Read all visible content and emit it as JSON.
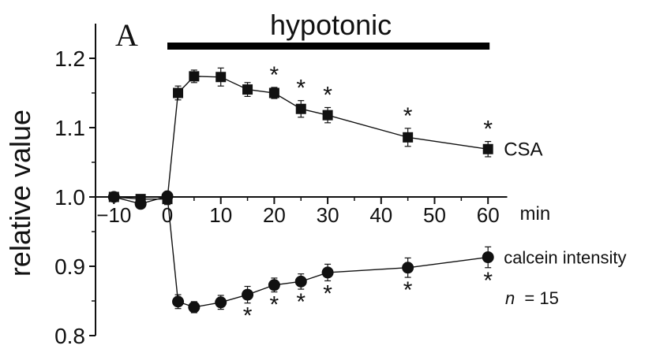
{
  "chart_data": {
    "type": "line",
    "panel_label": "A",
    "condition_label": "hypotonic",
    "ylabel": "relative value",
    "x_unit": "min",
    "ylim": [
      0.8,
      1.25
    ],
    "xlim": [
      -15,
      63
    ],
    "x_ticks": [
      -10,
      0,
      10,
      20,
      30,
      40,
      50,
      60
    ],
    "y_ticks": [
      0.8,
      0.9,
      1.0,
      1.1,
      1.2
    ],
    "x_tick_labels": [
      "−10",
      "0",
      "10",
      "20",
      "30",
      "40",
      "50",
      "60"
    ],
    "y_tick_labels": [
      "0.8",
      "0.9",
      "1.0",
      "1.1",
      "1.2"
    ],
    "hypotonic_period": [
      0,
      60
    ],
    "sample_size_label": "n",
    "sample_size_value": "= 15",
    "significance_marker": "*",
    "series": [
      {
        "name": "CSA",
        "marker": "square",
        "x": [
          -10,
          -5,
          0,
          2,
          5,
          10,
          15,
          20,
          25,
          30,
          45,
          60
        ],
        "y": [
          1.0,
          0.997,
          0.997,
          1.15,
          1.174,
          1.173,
          1.155,
          1.15,
          1.127,
          1.118,
          1.086,
          1.069
        ],
        "err": [
          0.004,
          0.005,
          0.008,
          0.01,
          0.009,
          0.013,
          0.01,
          0.008,
          0.012,
          0.011,
          0.013,
          0.011
        ],
        "significant_x": [
          20,
          25,
          30,
          45,
          60
        ]
      },
      {
        "name": "calcein intensity",
        "marker": "circle",
        "x": [
          -10,
          -5,
          0,
          2,
          5,
          10,
          15,
          20,
          25,
          30,
          45,
          60
        ],
        "y": [
          1.0,
          0.99,
          1.001,
          0.849,
          0.841,
          0.848,
          0.859,
          0.873,
          0.878,
          0.891,
          0.898,
          0.913
        ],
        "err": [
          0.004,
          0.006,
          0.006,
          0.01,
          0.008,
          0.01,
          0.012,
          0.01,
          0.011,
          0.012,
          0.014,
          0.015
        ],
        "significant_x": [
          15,
          20,
          25,
          30,
          45,
          60
        ]
      }
    ]
  }
}
